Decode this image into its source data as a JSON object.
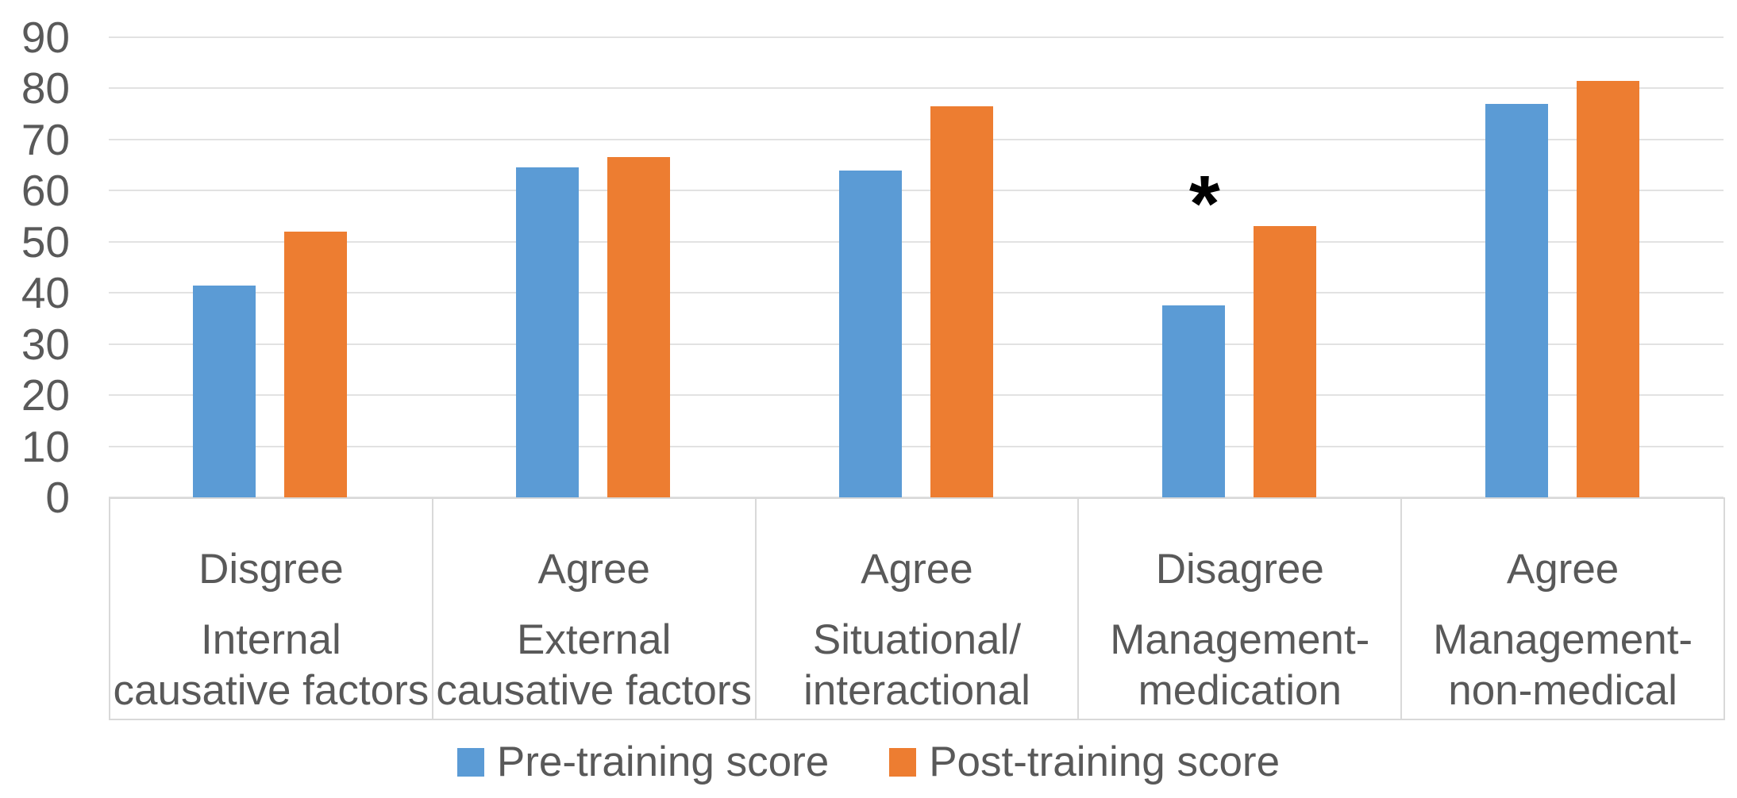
{
  "chart_data": {
    "type": "bar",
    "title": "",
    "xlabel": "",
    "ylabel": "",
    "ylim": [
      0,
      90
    ],
    "yticks": [
      90,
      80,
      70,
      60,
      50,
      40,
      30,
      20,
      10,
      0
    ],
    "grid": true,
    "legend_position": "bottom",
    "categories": [
      {
        "response": "Disgree",
        "factor_lines": [
          "Internal",
          "causative factors"
        ]
      },
      {
        "response": "Agree",
        "factor_lines": [
          "External",
          "causative factors"
        ]
      },
      {
        "response": "Agree",
        "factor_lines": [
          "Situational/",
          "interactional"
        ]
      },
      {
        "response": "Disagree",
        "factor_lines": [
          "Management-",
          "medication"
        ]
      },
      {
        "response": "Agree",
        "factor_lines": [
          "Management-",
          "non-medical"
        ]
      }
    ],
    "series": [
      {
        "name": "Pre-training score",
        "color": "#5b9bd5",
        "values": [
          41.5,
          64.5,
          64,
          37.5,
          77
        ]
      },
      {
        "name": "Post-training score",
        "color": "#ed7d31",
        "values": [
          52,
          66.5,
          76.5,
          53,
          81.5
        ]
      }
    ],
    "annotation": {
      "text": "*",
      "category_index": 3,
      "series_index": 0,
      "y_value": 62
    },
    "colors": {
      "axis_text": "#595959",
      "gridline": "#e2e2e2",
      "cell_border": "#d9d9d9",
      "annotation": "#000000"
    }
  }
}
